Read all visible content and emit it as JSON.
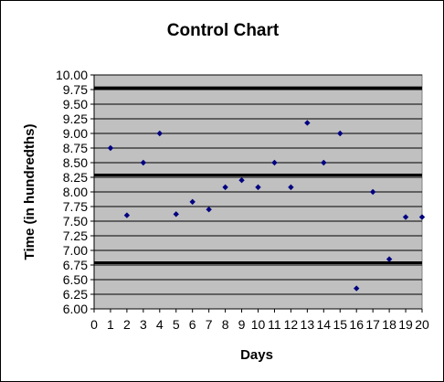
{
  "chart_data": {
    "type": "scatter",
    "title": "Control Chart",
    "xlabel": "Days",
    "ylabel": "Time (in hundredths)",
    "xlim": [
      0,
      20
    ],
    "ylim": [
      6.0,
      10.0
    ],
    "x_ticks": [
      "0",
      "1",
      "2",
      "3",
      "4",
      "5",
      "6",
      "7",
      "8",
      "9",
      "10",
      "11",
      "12",
      "13",
      "14",
      "15",
      "16",
      "17",
      "18",
      "19",
      "20"
    ],
    "y_ticks": [
      "6.00",
      "6.25",
      "6.50",
      "6.75",
      "7.00",
      "7.25",
      "7.50",
      "7.75",
      "8.00",
      "8.25",
      "8.50",
      "8.75",
      "9.00",
      "9.25",
      "9.50",
      "9.75",
      "10.00"
    ],
    "grid": true,
    "plot_background": "#c0c0c0",
    "marker_color": "#000080",
    "control_limits": [
      9.78,
      8.29,
      6.79
    ],
    "points": {
      "x": [
        1,
        2,
        3,
        4,
        5,
        6,
        7,
        8,
        9,
        10,
        11,
        12,
        13,
        14,
        15,
        16,
        17,
        18,
        19,
        20
      ],
      "y": [
        8.75,
        7.6,
        8.5,
        9.0,
        7.62,
        7.83,
        7.7,
        8.08,
        8.2,
        8.08,
        8.5,
        8.08,
        9.18,
        8.5,
        9.0,
        6.35,
        8.0,
        6.85,
        7.57,
        7.57
      ]
    }
  }
}
